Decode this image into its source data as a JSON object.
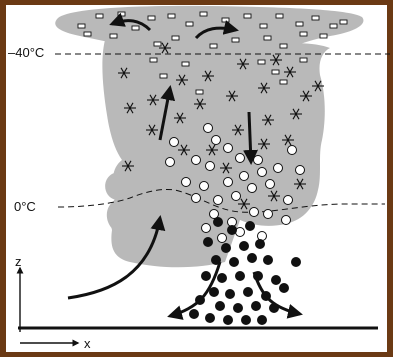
{
  "labels": {
    "temp_top": "–40°C",
    "temp_bottom": "0°C",
    "axis_z": "z",
    "axis_x": "x"
  },
  "colors": {
    "cloud_gray": "#b9b9b9",
    "ink": "#111111",
    "background": "#ffffff",
    "frame": "#6b3a14"
  },
  "legend_glyphs": {
    "ice_crystal": "snowflake",
    "graupel": "open-circle",
    "hail_rain": "filled-circle",
    "anvil_ice": "small-rectangle"
  }
}
